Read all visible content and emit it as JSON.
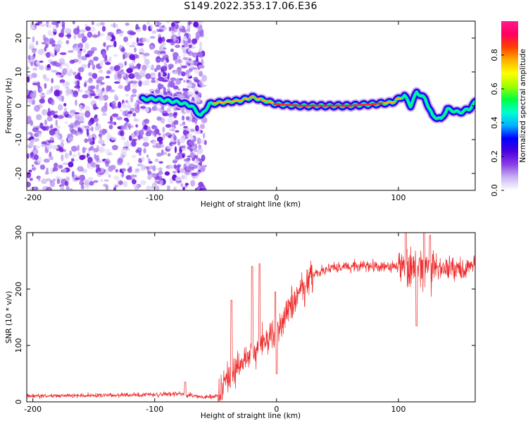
{
  "title": "S149.2022.353.17.06.E36",
  "chart_data": [
    {
      "type": "heatmap",
      "xlabel": "Height of straight line (km)",
      "ylabel": "Frequency (Hz)",
      "xlim": [
        -205,
        163
      ],
      "ylim": [
        -25,
        25
      ],
      "xticks": [
        -200,
        -100,
        0,
        100
      ],
      "yticks": [
        -20,
        -10,
        0,
        10,
        20
      ],
      "colorbar": {
        "label": "Normalized spectral amplitude",
        "range": [
          0,
          1
        ],
        "ticks": [
          "0.0",
          "0.2",
          "0.4",
          "0.6",
          "0.8"
        ],
        "colors": [
          "#ffffff",
          "#c9b3f3",
          "#8a3ee6",
          "#4b00e0",
          "#0000ff",
          "#00b4ff",
          "#00ffd0",
          "#00ff40",
          "#a0ff00",
          "#ffff00",
          "#ffb000",
          "#ff4000",
          "#ff0060",
          "#ff1a8c"
        ]
      },
      "noise_region_x": [
        -205,
        -62
      ],
      "ridge": [
        {
          "x": -110,
          "f": 2
        },
        {
          "x": -100,
          "f": 2
        },
        {
          "x": -90,
          "f": 1.5
        },
        {
          "x": -80,
          "f": 1
        },
        {
          "x": -70,
          "f": 0
        },
        {
          "x": -62,
          "f": -3
        },
        {
          "x": -55,
          "f": 0.5
        },
        {
          "x": -45,
          "f": 1
        },
        {
          "x": -30,
          "f": 1.5
        },
        {
          "x": -20,
          "f": 2.5
        },
        {
          "x": -10,
          "f": 1.5
        },
        {
          "x": 0,
          "f": 0.5
        },
        {
          "x": 20,
          "f": 0
        },
        {
          "x": 40,
          "f": 0
        },
        {
          "x": 60,
          "f": 0
        },
        {
          "x": 80,
          "f": 0.5
        },
        {
          "x": 95,
          "f": 1
        },
        {
          "x": 105,
          "f": 3
        },
        {
          "x": 110,
          "f": 0
        },
        {
          "x": 115,
          "f": 4
        },
        {
          "x": 122,
          "f": 2
        },
        {
          "x": 128,
          "f": -3
        },
        {
          "x": 135,
          "f": -4
        },
        {
          "x": 140,
          "f": -1
        },
        {
          "x": 150,
          "f": -2
        },
        {
          "x": 158,
          "f": -1
        },
        {
          "x": 163,
          "f": 1
        }
      ]
    },
    {
      "type": "line",
      "xlabel": "Height of straight line (km)",
      "ylabel": "SNR (10 * v/v)",
      "xlim": [
        -205,
        163
      ],
      "ylim": [
        0,
        300
      ],
      "xticks": [
        -200,
        -100,
        0,
        100
      ],
      "yticks": [
        0,
        100,
        200,
        300
      ],
      "series": [
        {
          "color": "#ee2a2a",
          "trend": [
            {
              "x": -205,
              "y": 10
            },
            {
              "x": -120,
              "y": 12
            },
            {
              "x": -80,
              "y": 14
            },
            {
              "x": -60,
              "y": 8
            },
            {
              "x": -48,
              "y": 10
            },
            {
              "x": -42,
              "y": 40
            },
            {
              "x": -30,
              "y": 70
            },
            {
              "x": -20,
              "y": 90
            },
            {
              "x": -10,
              "y": 105
            },
            {
              "x": 0,
              "y": 120
            },
            {
              "x": 10,
              "y": 160
            },
            {
              "x": 20,
              "y": 200
            },
            {
              "x": 30,
              "y": 225
            },
            {
              "x": 45,
              "y": 238
            },
            {
              "x": 70,
              "y": 240
            },
            {
              "x": 100,
              "y": 240
            },
            {
              "x": 130,
              "y": 236
            },
            {
              "x": 163,
              "y": 238
            }
          ],
          "peaks": [
            {
              "x": -75,
              "y": 35
            },
            {
              "x": -37,
              "y": 180
            },
            {
              "x": -20,
              "y": 240
            },
            {
              "x": -14,
              "y": 245
            },
            {
              "x": -1,
              "y": 195
            },
            {
              "x": 106,
              "y": 300
            },
            {
              "x": 121,
              "y": 300
            },
            {
              "x": 126,
              "y": 295
            }
          ],
          "dips": [
            {
              "x": 0,
              "y": 50
            },
            {
              "x": 115,
              "y": 135
            }
          ]
        }
      ]
    }
  ]
}
